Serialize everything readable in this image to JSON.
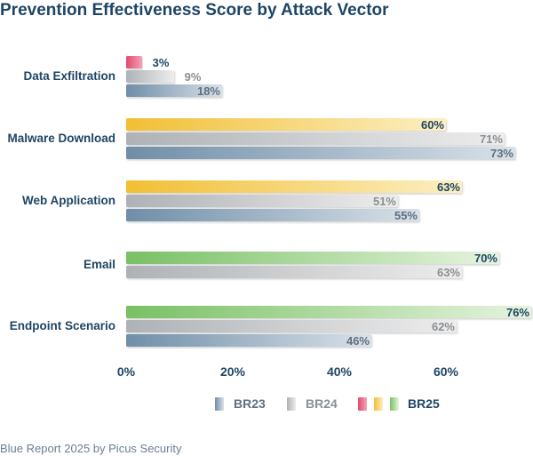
{
  "chart_data": {
    "type": "bar",
    "orientation": "horizontal",
    "title": "Prevention Effectiveness Score by Attack Vector",
    "categories": [
      "Data Exfiltration",
      "Malware Download",
      "Web Application",
      "Email",
      "Endpoint Scenario"
    ],
    "series": [
      {
        "name": "BR25",
        "values": [
          3,
          60,
          63,
          70,
          76
        ],
        "labels": [
          "3%",
          "60%",
          "63%",
          "70%",
          "76%"
        ]
      },
      {
        "name": "BR24",
        "values": [
          9,
          71,
          51,
          63,
          62
        ],
        "labels": [
          "9%",
          "71%",
          "51%",
          "63%",
          "62%"
        ]
      },
      {
        "name": "BR23",
        "values": [
          18,
          73,
          55,
          null,
          46
        ],
        "labels": [
          "18%",
          "73%",
          "55%",
          "",
          "46%"
        ]
      }
    ],
    "xlim": [
      0,
      76
    ],
    "x_ticks": [
      0,
      20,
      40,
      60
    ],
    "x_tick_labels": [
      "0%",
      "20%",
      "40%",
      "60%"
    ],
    "grid": false,
    "legend_position": "bottom",
    "legend": [
      "BR23",
      "BR24",
      "BR25"
    ],
    "source": "Blue Report 2025 by Picus Security",
    "colors": {
      "title": "#1e4565",
      "br23": "#6f8ea8",
      "br24": "#b4b8bc",
      "br25_red": "#e2496b",
      "br25_yellow": "#f3c542",
      "br25_green": "#7fc36a",
      "label_dark": "#1e4565",
      "label_grey": "#8a8f94",
      "label_br23": "#5f6f80",
      "source": "#6a7f93"
    }
  }
}
